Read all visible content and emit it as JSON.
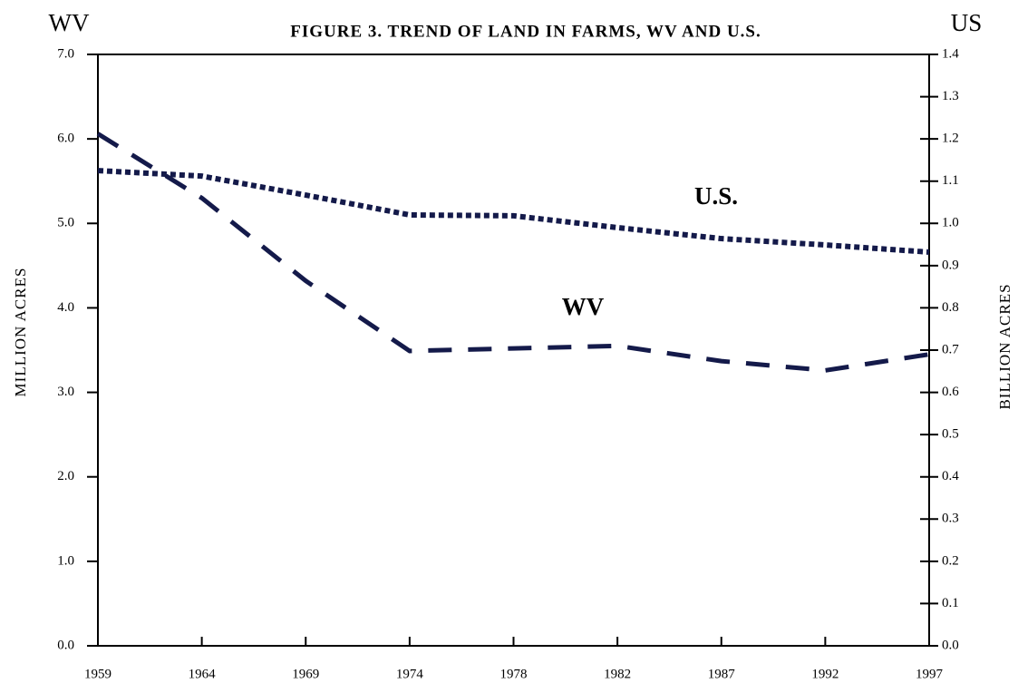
{
  "chart_data": {
    "type": "line",
    "title": "FIGURE 3. TREND OF LAND IN FARMS, WV AND U.S.",
    "y_header": "WV",
    "y2_header": "US",
    "ylabel": "MILLION ACRES",
    "y2label": "BILLION ACRES",
    "categories": [
      "1959",
      "1964",
      "1969",
      "1974",
      "1978",
      "1982",
      "1987",
      "1992",
      "1997"
    ],
    "series": [
      {
        "name": "WV",
        "color": "#141a4a",
        "dash": "dashed",
        "axis": "y",
        "values": [
          6.06,
          5.3,
          4.32,
          3.49,
          3.52,
          3.55,
          3.37,
          3.26,
          3.45
        ]
      },
      {
        "name": "U.S.",
        "color": "#141a4a",
        "dash": "dotted",
        "axis": "y2",
        "values": [
          1.125,
          1.112,
          1.067,
          1.02,
          1.018,
          0.99,
          0.964,
          0.949,
          0.932
        ]
      }
    ],
    "ylim": [
      0,
      7
    ],
    "yticks": [
      {
        "value": 0,
        "label": "0.0"
      },
      {
        "value": 1,
        "label": "1.0"
      },
      {
        "value": 2,
        "label": "2.0"
      },
      {
        "value": 3,
        "label": "3.0"
      },
      {
        "value": 4,
        "label": "4.0"
      },
      {
        "value": 5,
        "label": "5.0"
      },
      {
        "value": 6,
        "label": "6.0"
      },
      {
        "value": 7,
        "label": "7.0"
      }
    ],
    "y2lim": [
      0,
      1.4
    ],
    "y2ticks": [
      {
        "value": 0,
        "label": "0.0"
      },
      0.1,
      0.2,
      0.3,
      0.4,
      0.5,
      0.6,
      0.7,
      0.8,
      0.9,
      {
        "value": 1,
        "label": "1.0"
      },
      1.1,
      1.2,
      1.3,
      1.4
    ],
    "grid": false
  }
}
